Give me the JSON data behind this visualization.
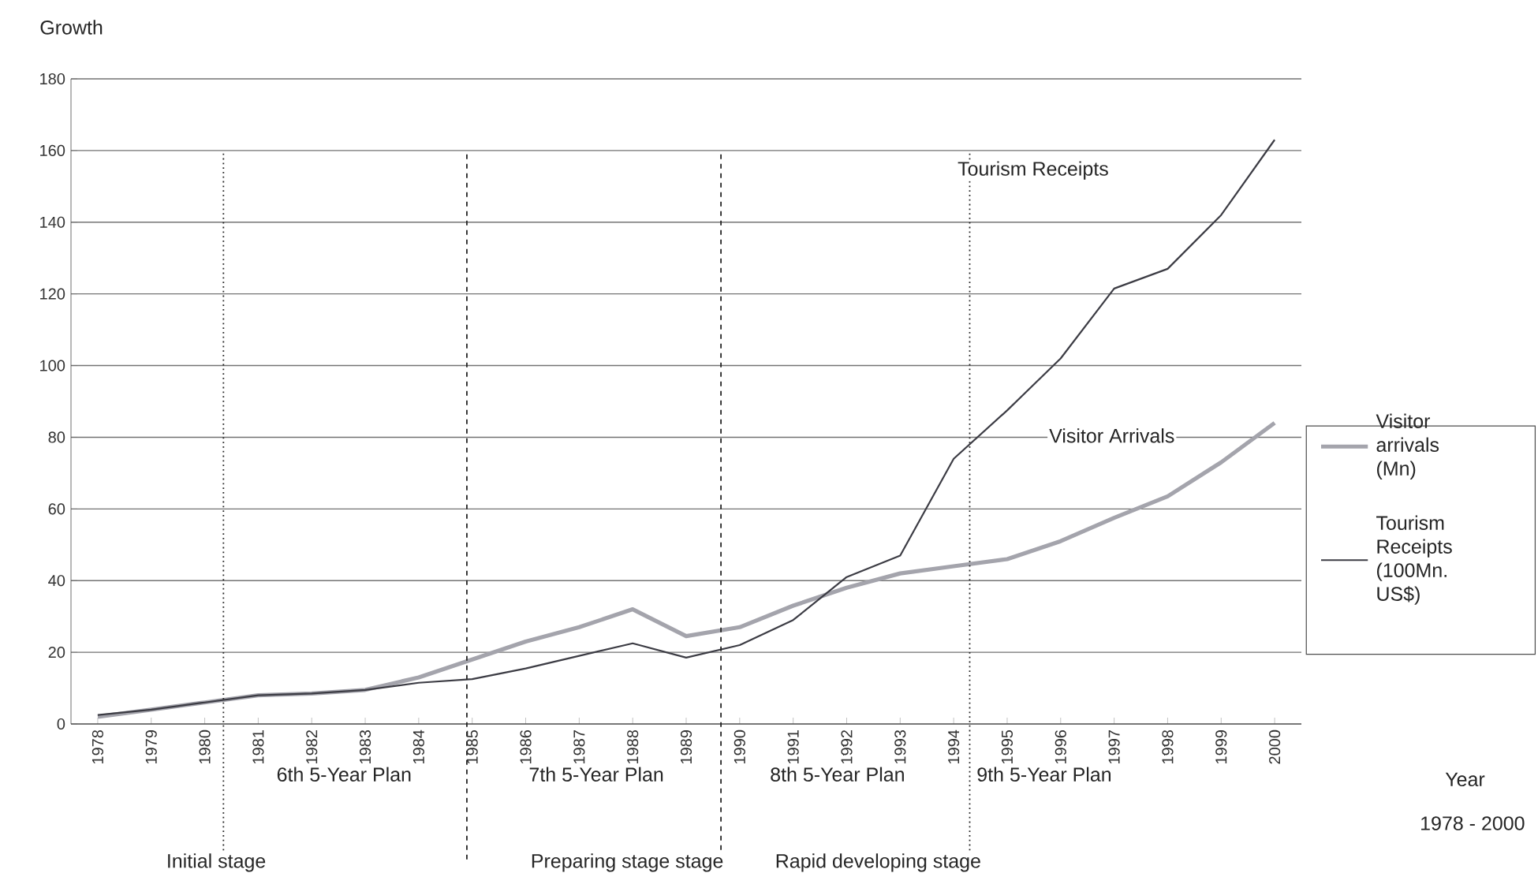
{
  "chart_data": {
    "type": "line",
    "ylabel": "Growth",
    "x": [
      1978,
      1979,
      1980,
      1981,
      1982,
      1983,
      1984,
      1985,
      1986,
      1987,
      1988,
      1989,
      1990,
      1991,
      1992,
      1993,
      1994,
      1995,
      1996,
      1997,
      1998,
      1999,
      2000
    ],
    "xlim": [
      1977.5,
      2000.5
    ],
    "xticks": [
      1978,
      1979,
      1980,
      1981,
      1982,
      1983,
      1984,
      1985,
      1986,
      1987,
      1988,
      1989,
      1990,
      1991,
      1992,
      1993,
      1994,
      1995,
      1996,
      1997,
      1998,
      1999,
      2000
    ],
    "ylim": [
      0,
      180
    ],
    "yticks": [
      0,
      20,
      40,
      60,
      80,
      100,
      120,
      140,
      160,
      180
    ],
    "grid": "y",
    "legend": "right",
    "line_style": "solid",
    "marker": "none",
    "series": [
      {
        "name": "Visitor arrivals (Mn)",
        "color": "#a4a4ac",
        "values": [
          2,
          4,
          6,
          8,
          8.5,
          9.5,
          13,
          18,
          23,
          27,
          32,
          24.5,
          27,
          33,
          38,
          42,
          44,
          46,
          51,
          57.5,
          63.5,
          73,
          84
        ]
      },
      {
        "name": "Tourism Receipts (100Mn. US$)",
        "color": "#3c3c44",
        "values": [
          2.5,
          4,
          6,
          8,
          8.5,
          9.5,
          11.5,
          12.5,
          15.5,
          19,
          22.5,
          18.5,
          22,
          29,
          41,
          47,
          74,
          87.5,
          102,
          121.5,
          127,
          142,
          163
        ]
      }
    ],
    "ref_lines": [
      {
        "axis": "x",
        "value": 1980.35,
        "line_style": "dotted"
      },
      {
        "axis": "x",
        "value": 1984.9,
        "line_style": "dashed"
      },
      {
        "axis": "x",
        "value": 1989.65,
        "line_style": "dashed"
      },
      {
        "axis": "x",
        "value": 1994.3,
        "line_style": "dotted"
      }
    ],
    "annotations": [
      "Tourism Receipts",
      "Visitor Arrivals",
      "6th 5-Year Plan",
      "7th 5-Year Plan",
      "8th 5-Year Plan",
      "9th 5-Year Plan",
      "Initial stage",
      "Preparing stage stage",
      "Rapid developing stage",
      "Year",
      "1978 - 2000"
    ]
  }
}
